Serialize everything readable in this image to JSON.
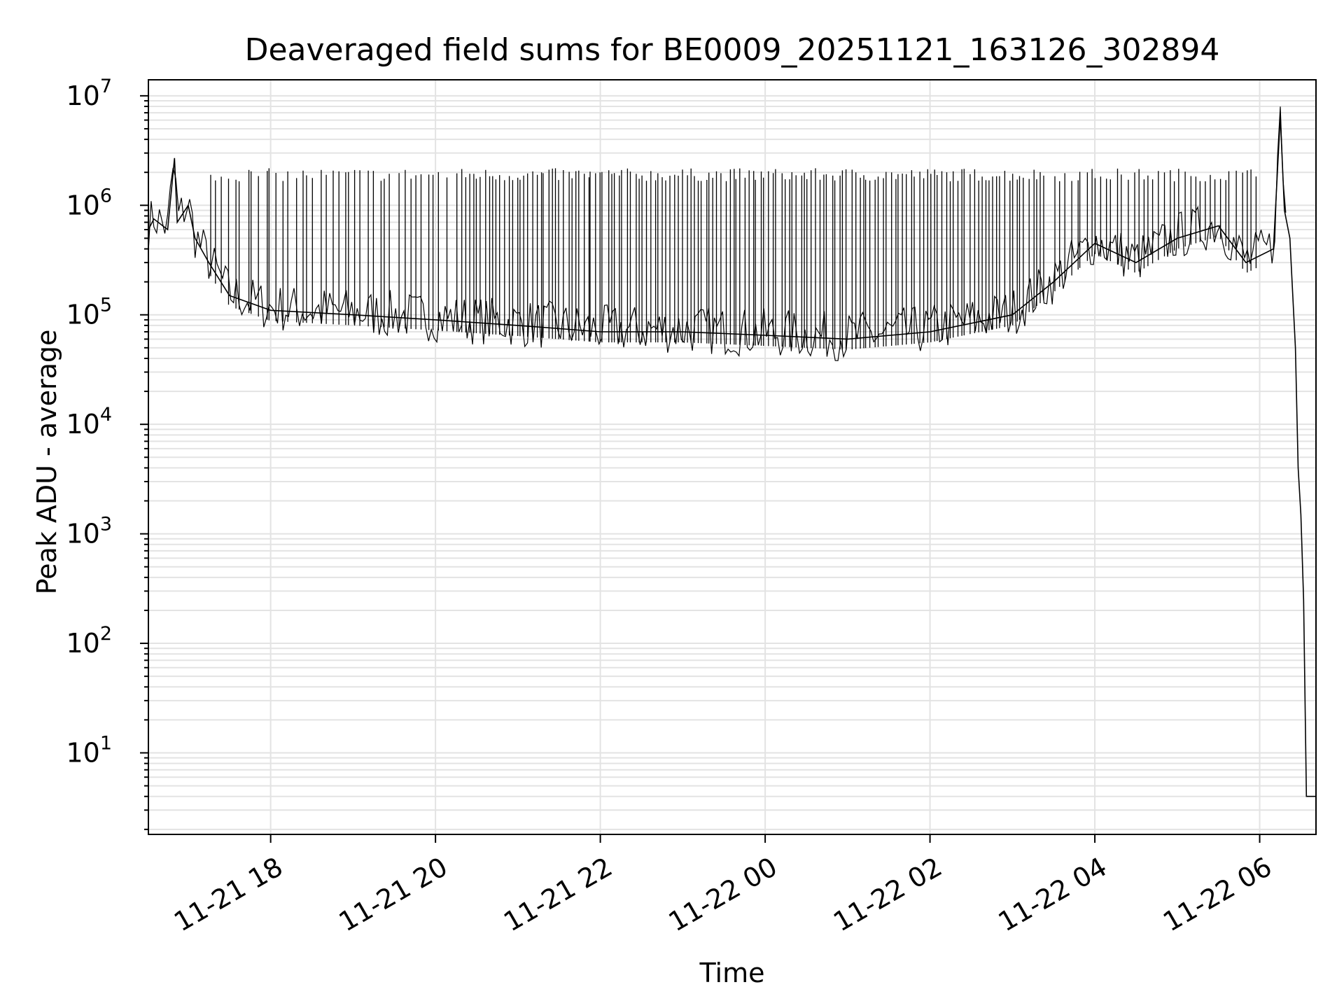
{
  "chart_data": {
    "type": "line",
    "title": "Deaveraged field sums for BE0009_20251121_163126_302894",
    "xlabel": "Time",
    "ylabel": "Peak ADU - average",
    "x_axis": {
      "type": "time",
      "range": [
        "2025-11-21 16:31",
        "2025-11-22 06:41"
      ],
      "ticks": [
        "2025-11-21 18:00",
        "2025-11-21 20:00",
        "2025-11-21 22:00",
        "2025-11-22 00:00",
        "2025-11-22 02:00",
        "2025-11-22 04:00",
        "2025-11-22 06:00"
      ],
      "tick_labels": [
        "11-21 18",
        "11-21 20",
        "11-21 22",
        "11-22 00",
        "11-22 02",
        "11-22 04",
        "11-22 06"
      ]
    },
    "y_axis": {
      "scale": "log",
      "range": [
        1.8,
        14000000
      ],
      "tick_exponents": [
        1,
        2,
        3,
        4,
        5,
        6,
        7
      ],
      "tick_base": "10"
    },
    "grid": "on (major and minor)",
    "series": [
      {
        "color": "#000000",
        "points": [
          [
            "2025-11-21 16:31",
            600000
          ],
          [
            "2025-11-21 16:35",
            750000
          ],
          [
            "2025-11-21 16:45",
            600000
          ],
          [
            "2025-11-21 16:50",
            2700000
          ],
          [
            "2025-11-21 16:52",
            700000
          ],
          [
            "2025-11-21 17:00",
            1000000
          ],
          [
            "2025-11-21 17:05",
            500000
          ],
          [
            "2025-11-21 17:15",
            300000
          ],
          [
            "2025-11-21 17:30",
            150000
          ],
          [
            "2025-11-21 18:00",
            110000
          ],
          [
            "2025-11-21 19:00",
            100000
          ],
          [
            "2025-11-21 20:00",
            90000
          ],
          [
            "2025-11-21 21:00",
            80000
          ],
          [
            "2025-11-21 22:00",
            70000
          ],
          [
            "2025-11-21 23:00",
            70000
          ],
          [
            "2025-11-22 00:00",
            65000
          ],
          [
            "2025-11-22 01:00",
            60000
          ],
          [
            "2025-11-22 02:00",
            70000
          ],
          [
            "2025-11-22 03:00",
            100000
          ],
          [
            "2025-11-22 03:30",
            200000
          ],
          [
            "2025-11-22 04:00",
            450000
          ],
          [
            "2025-11-22 04:30",
            300000
          ],
          [
            "2025-11-22 05:00",
            500000
          ],
          [
            "2025-11-22 05:30",
            650000
          ],
          [
            "2025-11-22 05:50",
            300000
          ],
          [
            "2025-11-22 06:10",
            400000
          ],
          [
            "2025-11-22 06:15",
            6500000
          ],
          [
            "2025-11-22 06:18",
            900000
          ],
          [
            "2025-11-22 06:22",
            500000
          ],
          [
            "2025-11-22 06:26",
            50000
          ],
          [
            "2025-11-22 06:28",
            4000
          ],
          [
            "2025-11-22 06:30",
            1500
          ],
          [
            "2025-11-22 06:32",
            250
          ],
          [
            "2025-11-22 06:34",
            4
          ],
          [
            "2025-11-22 06:41",
            4
          ]
        ],
        "repeated_spikes": {
          "upper_value": 1900000,
          "baseline": "trace value at each time",
          "intervals": [
            [
              "2025-11-21 17:15",
              "2025-11-21 20:10",
              40
            ],
            [
              "2025-11-21 20:15",
              "2025-11-22 03:25",
              150
            ],
            [
              "2025-11-22 03:30",
              "2025-11-22 06:00",
              40
            ]
          ]
        }
      }
    ]
  }
}
